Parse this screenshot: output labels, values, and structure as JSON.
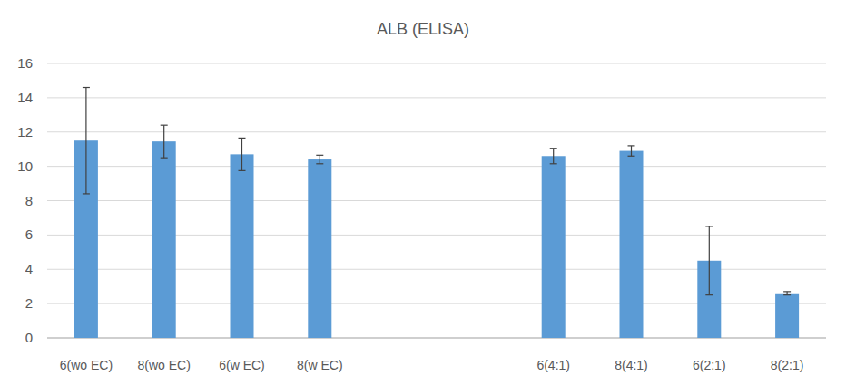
{
  "chart_data": {
    "type": "bar",
    "title": "ALB (ELISA)",
    "categories": [
      "6(wo EC)",
      "8(wo EC)",
      "6(w EC)",
      "8(w EC)",
      null,
      null,
      "6(4:1)",
      "8(4:1)",
      "6(2:1)",
      "8(2:1)"
    ],
    "values": [
      11.5,
      11.45,
      10.7,
      10.4,
      null,
      null,
      10.6,
      10.9,
      4.5,
      2.6
    ],
    "errors": [
      3.1,
      0.95,
      0.95,
      0.25,
      null,
      null,
      0.45,
      0.3,
      2.0,
      0.1
    ],
    "color": "#5b9bd5",
    "ylim": [
      0,
      16
    ],
    "yticks": [
      0,
      2,
      4,
      6,
      8,
      10,
      12,
      14,
      16
    ],
    "grid": true
  }
}
